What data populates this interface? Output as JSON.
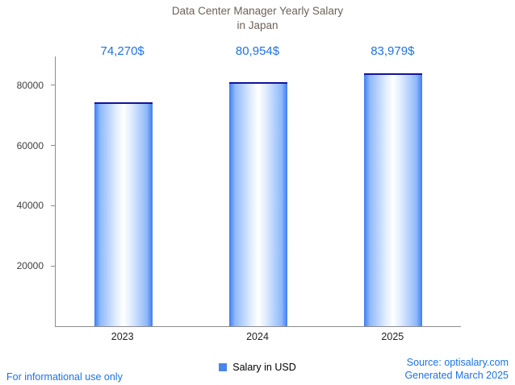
{
  "title": {
    "line1": "Data Center Manager Yearly Salary",
    "line2": "in Japan"
  },
  "chart_data": {
    "type": "bar",
    "title": "Data Center Manager Yearly Salary in Japan",
    "categories": [
      "2023",
      "2024",
      "2025"
    ],
    "values": [
      74270,
      80954,
      83979
    ],
    "value_labels": [
      "74,270$",
      "80,954$",
      "83,979$"
    ],
    "series_name": "Salary in USD",
    "xlabel": "",
    "ylabel": "",
    "ylim": [
      0,
      89600
    ],
    "yticks": [
      20000,
      40000,
      60000,
      80000
    ],
    "grid": false,
    "legend_position": "bottom"
  },
  "footer": {
    "disclaimer": "For informational use only",
    "source": "Source: optisalary.com",
    "generated": "Generated March 2025"
  },
  "colors": {
    "accent_blue": "#1a73e8",
    "bar_blue": "#3d7ef0",
    "bar_top_navy": "#12129e",
    "legend_swatch": "#4a86e8",
    "title_brown": "#6e6257",
    "axis_gray": "#8c8c8c"
  }
}
